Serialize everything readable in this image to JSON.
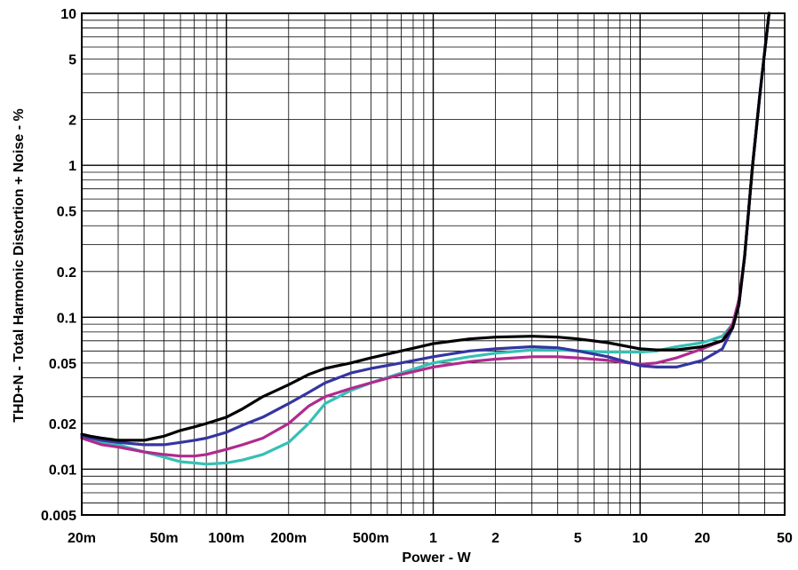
{
  "chart_data": {
    "type": "line",
    "title": "",
    "xlabel": "Power - W",
    "ylabel": "THD+N - Total Harmonic Distortion + Noise - %",
    "x_scale": "log",
    "y_scale": "log",
    "xlim": [
      0.02,
      50
    ],
    "ylim": [
      0.005,
      10
    ],
    "grid": true,
    "legend": "none",
    "x_ticks": [
      {
        "value": 0.02,
        "label": "20m"
      },
      {
        "value": 0.05,
        "label": "50m"
      },
      {
        "value": 0.1,
        "label": "100m"
      },
      {
        "value": 0.2,
        "label": "200m"
      },
      {
        "value": 0.5,
        "label": "500m"
      },
      {
        "value": 1,
        "label": "1"
      },
      {
        "value": 2,
        "label": "2"
      },
      {
        "value": 5,
        "label": "5"
      },
      {
        "value": 10,
        "label": "10"
      },
      {
        "value": 20,
        "label": "20"
      },
      {
        "value": 50,
        "label": "50"
      }
    ],
    "y_ticks": [
      {
        "value": 0.005,
        "label": "0.005"
      },
      {
        "value": 0.01,
        "label": "0.01"
      },
      {
        "value": 0.02,
        "label": "0.02"
      },
      {
        "value": 0.05,
        "label": "0.05"
      },
      {
        "value": 0.1,
        "label": "0.1"
      },
      {
        "value": 0.2,
        "label": "0.2"
      },
      {
        "value": 0.5,
        "label": "0.5"
      },
      {
        "value": 1,
        "label": "1"
      },
      {
        "value": 2,
        "label": "2"
      },
      {
        "value": 5,
        "label": "5"
      },
      {
        "value": 10,
        "label": "10"
      }
    ],
    "series": [
      {
        "color": "#000000",
        "x": [
          0.02,
          0.022,
          0.025,
          0.03,
          0.035,
          0.04,
          0.045,
          0.05,
          0.06,
          0.07,
          0.08,
          0.1,
          0.12,
          0.15,
          0.2,
          0.25,
          0.3,
          0.4,
          0.5,
          0.7,
          1,
          1.5,
          2,
          3,
          4,
          5,
          7,
          10,
          12,
          15,
          20,
          25,
          28,
          30,
          32,
          35,
          38,
          42
        ],
        "y": [
          0.017,
          0.0165,
          0.016,
          0.0155,
          0.0155,
          0.0155,
          0.016,
          0.0165,
          0.018,
          0.019,
          0.02,
          0.022,
          0.025,
          0.03,
          0.036,
          0.042,
          0.046,
          0.05,
          0.054,
          0.06,
          0.067,
          0.072,
          0.074,
          0.075,
          0.074,
          0.072,
          0.068,
          0.062,
          0.061,
          0.061,
          0.064,
          0.07,
          0.085,
          0.12,
          0.25,
          1.0,
          3.0,
          10.0
        ]
      },
      {
        "color": "#3535a0",
        "x": [
          0.02,
          0.025,
          0.03,
          0.04,
          0.05,
          0.06,
          0.07,
          0.08,
          0.1,
          0.12,
          0.15,
          0.2,
          0.25,
          0.3,
          0.4,
          0.5,
          0.7,
          1,
          1.5,
          2,
          3,
          4,
          5,
          7,
          10,
          12,
          15,
          20,
          25,
          28,
          30,
          32,
          35,
          38,
          42
        ],
        "y": [
          0.0165,
          0.0155,
          0.015,
          0.0145,
          0.0145,
          0.015,
          0.0155,
          0.016,
          0.0175,
          0.0195,
          0.022,
          0.027,
          0.032,
          0.037,
          0.043,
          0.046,
          0.05,
          0.055,
          0.06,
          0.062,
          0.064,
          0.063,
          0.06,
          0.055,
          0.048,
          0.047,
          0.047,
          0.052,
          0.062,
          0.085,
          0.12,
          0.25,
          1.0,
          3.0,
          10.0
        ]
      },
      {
        "color": "#b02a8f",
        "x": [
          0.02,
          0.025,
          0.03,
          0.04,
          0.05,
          0.06,
          0.07,
          0.08,
          0.1,
          0.12,
          0.15,
          0.2,
          0.25,
          0.3,
          0.4,
          0.5,
          0.7,
          1,
          1.5,
          2,
          3,
          4,
          5,
          7,
          10,
          12,
          15,
          20,
          25,
          28,
          30,
          32,
          35,
          38,
          42
        ],
        "y": [
          0.016,
          0.0145,
          0.014,
          0.013,
          0.0125,
          0.0122,
          0.0122,
          0.0125,
          0.0135,
          0.0145,
          0.016,
          0.02,
          0.026,
          0.03,
          0.034,
          0.037,
          0.042,
          0.047,
          0.051,
          0.053,
          0.055,
          0.055,
          0.054,
          0.052,
          0.049,
          0.05,
          0.054,
          0.062,
          0.07,
          0.09,
          0.13,
          0.25,
          1.0,
          3.0,
          10.0
        ]
      },
      {
        "color": "#35c0b5",
        "x": [
          0.02,
          0.025,
          0.03,
          0.04,
          0.05,
          0.06,
          0.07,
          0.08,
          0.1,
          0.12,
          0.15,
          0.2,
          0.25,
          0.3,
          0.4,
          0.5,
          0.7,
          1,
          1.5,
          2,
          3,
          4,
          5,
          7,
          10,
          12,
          15,
          20,
          25,
          28,
          30,
          32,
          35,
          38,
          42
        ],
        "y": [
          0.016,
          0.015,
          0.0145,
          0.013,
          0.012,
          0.0112,
          0.011,
          0.0108,
          0.011,
          0.0115,
          0.0125,
          0.015,
          0.02,
          0.027,
          0.033,
          0.037,
          0.043,
          0.05,
          0.055,
          0.058,
          0.061,
          0.061,
          0.06,
          0.059,
          0.059,
          0.06,
          0.064,
          0.068,
          0.075,
          0.09,
          0.12,
          0.25,
          1.0,
          3.0,
          10.0
        ]
      }
    ]
  }
}
